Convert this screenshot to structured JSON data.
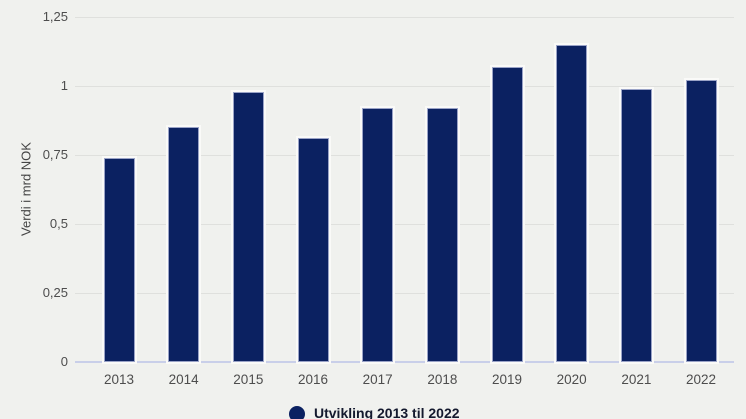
{
  "chart_data": {
    "type": "bar",
    "title": "",
    "ylabel": "Verdi i mrd NOK",
    "xlabel": "",
    "categories": [
      "2013",
      "2014",
      "2015",
      "2016",
      "2017",
      "2018",
      "2019",
      "2020",
      "2021",
      "2022"
    ],
    "values": [
      0.74,
      0.85,
      0.98,
      0.81,
      0.92,
      0.92,
      1.07,
      1.15,
      0.99,
      1.02
    ],
    "ylim": [
      0,
      1.25
    ],
    "yticks": [
      0,
      0.25,
      0.5,
      0.75,
      1,
      1.25
    ],
    "ytick_labels": [
      "0",
      "0,25",
      "0,5",
      "0,75",
      "1",
      "1,25"
    ],
    "grid": true,
    "legend": {
      "label": "Utvikling 2013 til 2022",
      "position": "bottom",
      "marker": "circle"
    },
    "colors": {
      "bar": "#0b2161",
      "background": "#f0f1ee",
      "gridline": "#dfe0dd",
      "zero_line": "#c9cfe9",
      "tick_text": "#4d4d4d",
      "axis_title_text": "#454545",
      "legend_text": "#14192e"
    }
  }
}
